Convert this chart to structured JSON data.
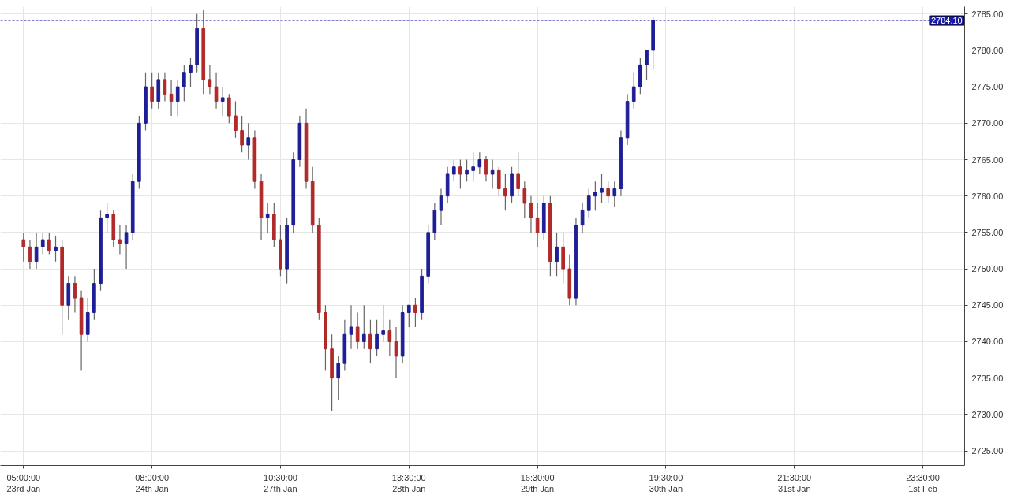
{
  "chart_data": {
    "type": "candlestick",
    "categories": [
      "05:00:00\n23rd Jan",
      null,
      null,
      null,
      null,
      null,
      null,
      null,
      null,
      null,
      null,
      null,
      null,
      null,
      null,
      null,
      null,
      null,
      null,
      null,
      "08:00:00\n24th Jan",
      null,
      null,
      null,
      null,
      null,
      null,
      null,
      null,
      null,
      null,
      null,
      null,
      null,
      null,
      null,
      null,
      null,
      null,
      null,
      "10:30:00\n27th Jan",
      null,
      null,
      null,
      null,
      null,
      null,
      null,
      null,
      null,
      null,
      null,
      null,
      null,
      null,
      null,
      null,
      null,
      null,
      null,
      "13:30:00\n28th Jan",
      null,
      null,
      null,
      null,
      null,
      null,
      null,
      null,
      null,
      null,
      null,
      null,
      null,
      null,
      null,
      null,
      null,
      null,
      null,
      "16:30:00\n29th Jan",
      null,
      null,
      null,
      null,
      null,
      null,
      null,
      null,
      null,
      null,
      null,
      null,
      null,
      null,
      null,
      null,
      null,
      null,
      null,
      "19:30:00\n30th Jan",
      null,
      null,
      null,
      null,
      null,
      null,
      null,
      null,
      null,
      null,
      null,
      null,
      null,
      null,
      null,
      null,
      null,
      null,
      null,
      "21:30:00\n31st Jan",
      null,
      null,
      null,
      null,
      null,
      null,
      null,
      null,
      null,
      null,
      null,
      null,
      null,
      null,
      null,
      null,
      null,
      null,
      null,
      "23:30:00\n1st Feb",
      null,
      null,
      null,
      null,
      null,
      null
    ],
    "ohlc": [
      [
        2754,
        2755,
        2751,
        2753
      ],
      [
        2753,
        2754,
        2750,
        2751
      ],
      [
        2751,
        2755,
        2750,
        2753
      ],
      [
        2753,
        2755,
        2752,
        2754
      ],
      [
        2754,
        2755,
        2752,
        2752.5
      ],
      [
        2752.5,
        2754.5,
        2751,
        2753
      ],
      [
        2753,
        2754,
        2741,
        2745
      ],
      [
        2745,
        2749,
        2743,
        2748
      ],
      [
        2748,
        2749,
        2744,
        2746
      ],
      [
        2746,
        2747,
        2736,
        2741
      ],
      [
        2741,
        2746,
        2740,
        2744
      ],
      [
        2744,
        2750,
        2743,
        2748
      ],
      [
        2748,
        2758,
        2747,
        2757
      ],
      [
        2757,
        2759,
        2755,
        2757.5
      ],
      [
        2757.5,
        2758,
        2753,
        2754
      ],
      [
        2754,
        2756,
        2752,
        2753.5
      ],
      [
        2753.5,
        2756,
        2750,
        2755
      ],
      [
        2755,
        2763,
        2754,
        2762
      ],
      [
        2762,
        2771,
        2761,
        2770
      ],
      [
        2770,
        2777,
        2769,
        2775
      ],
      [
        2775,
        2777,
        2772,
        2773
      ],
      [
        2773,
        2777,
        2772,
        2776
      ],
      [
        2776,
        2777,
        2773,
        2774
      ],
      [
        2774,
        2776,
        2771,
        2773
      ],
      [
        2773,
        2776,
        2771,
        2775
      ],
      [
        2775,
        2778,
        2773,
        2777
      ],
      [
        2777,
        2779,
        2775,
        2778
      ],
      [
        2778,
        2785,
        2777,
        2783
      ],
      [
        2783,
        2785.5,
        2774,
        2776
      ],
      [
        2776,
        2778,
        2774,
        2775
      ],
      [
        2775,
        2777,
        2772,
        2773
      ],
      [
        2773,
        2775,
        2771,
        2773.5
      ],
      [
        2773.5,
        2774,
        2770,
        2771
      ],
      [
        2771,
        2773,
        2768,
        2769
      ],
      [
        2769,
        2771,
        2766,
        2767
      ],
      [
        2767,
        2770,
        2765,
        2768
      ],
      [
        2768,
        2769,
        2761,
        2762
      ],
      [
        2762,
        2763,
        2754,
        2757
      ],
      [
        2757,
        2759,
        2755,
        2757.5
      ],
      [
        2757.5,
        2759,
        2753,
        2754
      ],
      [
        2754,
        2756,
        2749,
        2750
      ],
      [
        2750,
        2757,
        2748,
        2756
      ],
      [
        2756,
        2766,
        2755,
        2765
      ],
      [
        2765,
        2771,
        2764,
        2770
      ],
      [
        2770,
        2772,
        2761,
        2762
      ],
      [
        2762,
        2764,
        2755,
        2756
      ],
      [
        2756,
        2757,
        2743,
        2744
      ],
      [
        2744,
        2745,
        2736,
        2739
      ],
      [
        2739,
        2741,
        2730.5,
        2735
      ],
      [
        2735,
        2738,
        2732,
        2737
      ],
      [
        2737,
        2743,
        2736,
        2741
      ],
      [
        2741,
        2745,
        2739,
        2742
      ],
      [
        2742,
        2744,
        2739,
        2740
      ],
      [
        2740,
        2745,
        2739,
        2741
      ],
      [
        2741,
        2743,
        2737,
        2739
      ],
      [
        2739,
        2743,
        2738,
        2741
      ],
      [
        2741,
        2745,
        2740,
        2741.5
      ],
      [
        2741.5,
        2743,
        2738,
        2740
      ],
      [
        2740,
        2742,
        2735,
        2738
      ],
      [
        2738,
        2745,
        2737,
        2744
      ],
      [
        2744,
        2745,
        2742,
        2745
      ],
      [
        2745,
        2746,
        2742,
        2744
      ],
      [
        2744,
        2750,
        2743,
        2749
      ],
      [
        2749,
        2756,
        2748,
        2755
      ],
      [
        2755,
        2759,
        2754,
        2758
      ],
      [
        2758,
        2761,
        2756,
        2760
      ],
      [
        2760,
        2764,
        2759,
        2763
      ],
      [
        2763,
        2765,
        2762,
        2764
      ],
      [
        2764,
        2765,
        2761,
        2763
      ],
      [
        2763,
        2765,
        2762,
        2763.5
      ],
      [
        2763.5,
        2766,
        2762,
        2764
      ],
      [
        2764,
        2766,
        2763,
        2765
      ],
      [
        2765,
        2765.5,
        2762,
        2763
      ],
      [
        2763,
        2765,
        2761,
        2763.5
      ],
      [
        2763.5,
        2764,
        2760,
        2761
      ],
      [
        2761,
        2763,
        2758,
        2760
      ],
      [
        2760,
        2764,
        2759,
        2763
      ],
      [
        2763,
        2766,
        2760,
        2761
      ],
      [
        2761,
        2762,
        2757,
        2759
      ],
      [
        2759,
        2760,
        2755,
        2757
      ],
      [
        2757,
        2759,
        2753,
        2755
      ],
      [
        2755,
        2760,
        2754,
        2759
      ],
      [
        2759,
        2760,
        2749,
        2751
      ],
      [
        2751,
        2755,
        2749,
        2753
      ],
      [
        2753,
        2755,
        2748,
        2750
      ],
      [
        2750,
        2752,
        2745,
        2746
      ],
      [
        2746,
        2757,
        2745,
        2756
      ],
      [
        2756,
        2759,
        2755,
        2758
      ],
      [
        2758,
        2761,
        2757,
        2760
      ],
      [
        2760,
        2762,
        2758,
        2760.5
      ],
      [
        2760.5,
        2763,
        2759,
        2761
      ],
      [
        2761,
        2762,
        2759,
        2760
      ],
      [
        2760,
        2762,
        2758.5,
        2761
      ],
      [
        2761,
        2769,
        2760,
        2768
      ],
      [
        2768,
        2774,
        2767,
        2773
      ],
      [
        2773,
        2777,
        2772,
        2775
      ],
      [
        2775,
        2779,
        2774,
        2778
      ],
      [
        2778,
        2780,
        2776,
        2780
      ],
      [
        2780,
        2784.5,
        2777.5,
        2784.1
      ],
      null,
      null,
      null,
      null,
      null,
      null,
      null,
      null,
      null,
      null,
      null,
      null,
      null,
      null,
      null,
      null,
      null,
      null,
      null,
      null,
      null,
      null,
      null,
      null,
      null,
      null,
      null,
      null,
      null,
      null,
      null,
      null,
      null,
      null,
      null,
      null,
      null,
      null,
      null,
      null,
      null,
      null,
      null,
      null,
      null,
      null,
      null,
      null
    ],
    "colors": [
      "#b02a2a",
      "#b02a2a",
      "#1e1e96",
      "#1e1e96",
      "#b02a2a",
      "#1e1e96",
      "#b02a2a",
      "#1e1e96",
      "#b02a2a",
      "#b02a2a",
      "#1e1e96",
      "#1e1e96",
      "#1e1e96",
      "#1e1e96",
      "#b02a2a",
      "#b02a2a",
      "#1e1e96",
      "#1e1e96",
      "#1e1e96",
      "#1e1e96",
      "#b02a2a",
      "#1e1e96",
      "#b02a2a",
      "#b02a2a",
      "#1e1e96",
      "#1e1e96",
      "#1e1e96",
      "#1e1e96",
      "#b02a2a",
      "#b02a2a",
      "#b02a2a",
      "#1e1e96",
      "#b02a2a",
      "#b02a2a",
      "#b02a2a",
      "#1e1e96",
      "#b02a2a",
      "#b02a2a",
      "#1e1e96",
      "#b02a2a",
      "#b02a2a",
      "#1e1e96",
      "#1e1e96",
      "#1e1e96",
      "#b02a2a",
      "#b02a2a",
      "#b02a2a",
      "#b02a2a",
      "#b02a2a",
      "#1e1e96",
      "#1e1e96",
      "#1e1e96",
      "#b02a2a",
      "#1e1e96",
      "#b02a2a",
      "#1e1e96",
      "#1e1e96",
      "#b02a2a",
      "#b02a2a",
      "#1e1e96",
      "#1e1e96",
      "#b02a2a",
      "#1e1e96",
      "#1e1e96",
      "#1e1e96",
      "#1e1e96",
      "#1e1e96",
      "#1e1e96",
      "#b02a2a",
      "#1e1e96",
      "#1e1e96",
      "#1e1e96",
      "#b02a2a",
      "#1e1e96",
      "#b02a2a",
      "#b02a2a",
      "#1e1e96",
      "#b02a2a",
      "#b02a2a",
      "#b02a2a",
      "#b02a2a",
      "#1e1e96",
      "#b02a2a",
      "#1e1e96",
      "#b02a2a",
      "#b02a2a",
      "#1e1e96",
      "#1e1e96",
      "#1e1e96",
      "#1e1e96",
      "#1e1e96",
      "#b02a2a",
      "#1e1e96",
      "#1e1e96",
      "#1e1e96",
      "#1e1e96",
      "#1e1e96",
      "#1e1e96",
      "#1e1e96",
      null,
      null,
      null,
      null,
      null,
      null,
      null,
      null,
      null,
      null,
      null,
      null,
      null,
      null,
      null,
      null,
      null,
      null,
      null,
      null,
      null,
      null,
      null,
      null,
      null,
      null,
      null,
      null,
      null,
      null,
      null,
      null,
      null,
      null,
      null,
      null,
      null,
      null,
      null,
      null,
      null,
      null,
      null,
      null,
      null,
      null,
      null,
      null
    ],
    "ylim": [
      2723,
      2786
    ],
    "yticks": [
      {
        "value": 2725,
        "label": "2725.00"
      },
      {
        "value": 2730,
        "label": "2730.00"
      },
      {
        "value": 2735,
        "label": "2735.00"
      },
      {
        "value": 2740,
        "label": "2740.00"
      },
      {
        "value": 2745,
        "label": "2745.00"
      },
      {
        "value": 2750,
        "label": "2750.00"
      },
      {
        "value": 2755,
        "label": "2755.00"
      },
      {
        "value": 2760,
        "label": "2760.00"
      },
      {
        "value": 2765,
        "label": "2765.00"
      },
      {
        "value": 2770,
        "label": "2770.00"
      },
      {
        "value": 2775,
        "label": "2775.00"
      },
      {
        "value": 2780,
        "label": "2780.00"
      },
      {
        "value": 2785,
        "label": "2785.00"
      }
    ],
    "ref_lines": [
      {
        "axis": "y",
        "value": 2784.1,
        "label": "2784.10",
        "color": "#1a1aa8",
        "line_style": "dashed"
      }
    ],
    "grid": true
  }
}
